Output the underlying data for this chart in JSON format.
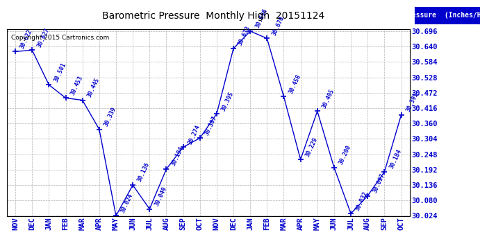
{
  "title": "Barometric Pressure  Monthly High  20151124",
  "copyright": "Copyright 2015 Cartronics.com",
  "legend_label": "Pressure  (Inches/Hg)",
  "months": [
    "NOV",
    "DEC",
    "JAN",
    "FEB",
    "MAR",
    "APR",
    "MAY",
    "JUN",
    "JUL",
    "AUG",
    "SEP",
    "OCT",
    "NOV",
    "DEC",
    "JAN",
    "FEB",
    "MAR",
    "APR",
    "MAY",
    "JUN",
    "JUL",
    "AUG",
    "SEP",
    "OCT"
  ],
  "values": [
    30.622,
    30.627,
    30.501,
    30.453,
    30.445,
    30.339,
    30.024,
    30.136,
    30.049,
    30.194,
    30.274,
    30.307,
    30.395,
    30.633,
    30.696,
    30.67,
    30.458,
    30.229,
    30.405,
    30.2,
    30.032,
    30.097,
    30.184,
    30.391
  ],
  "line_color": "#0000cc",
  "marker_color": "#0000cc",
  "background_color": "#ffffff",
  "grid_color": "#aaaaaa",
  "title_color": "#000000",
  "label_color": "#0000cc",
  "axis_label_color": "#0000cc",
  "legend_bg": "#0000cc",
  "legend_text": "#ffffff",
  "ylim_min": 30.024,
  "ylim_max": 30.696,
  "ytick_interval": 0.056
}
